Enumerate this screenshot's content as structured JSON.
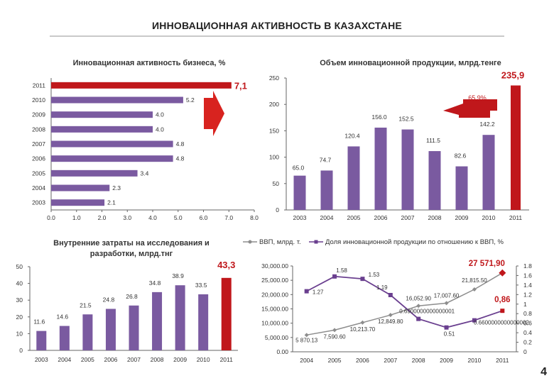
{
  "page": {
    "title": "ИННОВАЦИОННАЯ АКТИВНОСТЬ В КАЗАХСТАНЕ",
    "page_number": "4"
  },
  "colors": {
    "purple": "#7a5aa0",
    "red": "#c0171b",
    "line_purple": "#6a3f8f",
    "line_gray": "#8d8d8d",
    "grid": "#d9d9d9"
  },
  "chart_data": [
    {
      "type": "bar",
      "orientation": "horizontal",
      "title": "Инновационная активность бизнеса, %",
      "categories": [
        "2011",
        "2010",
        "2009",
        "2008",
        "2007",
        "2006",
        "2005",
        "2004",
        "2003"
      ],
      "values": [
        7.1,
        5.2,
        4.0,
        4.0,
        4.8,
        4.8,
        3.4,
        2.3,
        2.1
      ],
      "value_labels": [
        "7,1",
        "5.2",
        "4.0",
        "4.0",
        "4.8",
        "4.8",
        "3.4",
        "2.3",
        "2.1"
      ],
      "xlim": [
        0,
        8
      ],
      "xticks": [
        "0.0",
        "1.0",
        "2.0",
        "3.0",
        "4.0",
        "5.0",
        "6.0",
        "7.0",
        "8.0"
      ],
      "highlight": "2011",
      "grid": false
    },
    {
      "type": "bar",
      "title": "Объем инновационной продукции, млрд.тенге",
      "categories": [
        "2003",
        "2004",
        "2005",
        "2006",
        "2007",
        "2008",
        "2009",
        "2010",
        "2011"
      ],
      "values": [
        65.0,
        74.7,
        120.4,
        156.0,
        152.5,
        111.5,
        82.6,
        142.2,
        235.9
      ],
      "value_labels": [
        "65.0",
        "74.7",
        "120.4",
        "156.0",
        "152.5",
        "111.5",
        "82.6",
        "142.2",
        "235,9"
      ],
      "ylim": [
        0,
        250
      ],
      "yticks": [
        "0",
        "50",
        "100",
        "150",
        "200",
        "250"
      ],
      "highlight": "2011",
      "annotation": "65,9%",
      "grid": false
    },
    {
      "type": "bar",
      "title": "Внутренние затраты на исследования и разработки, млрд.тнг",
      "categories": [
        "2003",
        "2004",
        "2005",
        "2006",
        "2007",
        "2008",
        "2009",
        "2010",
        "2011"
      ],
      "values": [
        11.6,
        14.6,
        21.5,
        24.8,
        26.8,
        34.8,
        38.9,
        33.5,
        43.3
      ],
      "value_labels": [
        "11.6",
        "14.6",
        "21.5",
        "24.8",
        "26.8",
        "34.8",
        "38.9",
        "33.5",
        "43,3"
      ],
      "ylim": [
        0,
        50
      ],
      "yticks": [
        "0",
        "10",
        "20",
        "30",
        "40",
        "50"
      ],
      "highlight": "2011",
      "grid": false
    },
    {
      "type": "line",
      "legend_position": "top",
      "categories": [
        "2004",
        "2005",
        "2006",
        "2007",
        "2008",
        "2009",
        "2010",
        "2011"
      ],
      "series": [
        {
          "name": "ВВП, млрд. т.",
          "axis": "left",
          "values": [
            5870.13,
            7590.6,
            10213.7,
            12849.8,
            16052.9,
            17007.6,
            21815.5,
            27571.9
          ],
          "value_labels": [
            "5 870.13",
            "7,590.60",
            "10,213.70",
            "12,849.80",
            "16,052.90",
            "17,007.60",
            "21,815.50",
            "27 571,90"
          ]
        },
        {
          "name": "Доля инновационной продукции по отношению к ВВП, %",
          "axis": "right",
          "values": [
            1.27,
            1.58,
            1.53,
            1.19,
            0.69,
            0.51,
            0.66,
            0.86
          ],
          "value_labels": [
            "1.27",
            "1.58",
            "1.53",
            "1.19",
            "0.6900000000000001",
            "0.51",
            "0.6600000000000002",
            "0,86"
          ]
        }
      ],
      "ylim_left": [
        0,
        30000
      ],
      "yticks_left": [
        "0.00",
        "5,000.00",
        "10,000.00",
        "15,000.00",
        "20,000.00",
        "25,000.00",
        "30,000.00"
      ],
      "ylim_right": [
        0,
        1.8
      ],
      "yticks_right": [
        "0",
        "0.2",
        "0.4",
        "0.6",
        "0.8",
        "1",
        "1.2",
        "1.4",
        "1.6",
        "1.8"
      ],
      "grid": false
    }
  ]
}
